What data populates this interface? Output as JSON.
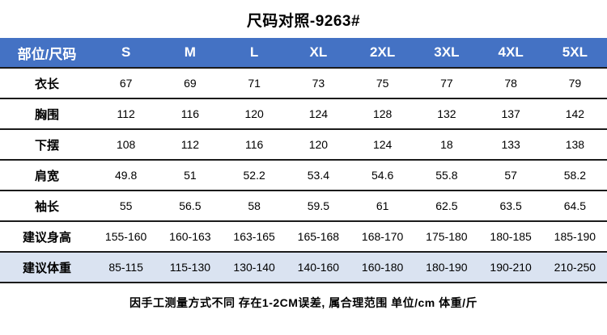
{
  "title": "尺码对照-9263#",
  "table": {
    "headers": [
      "部位/尺码",
      "S",
      "M",
      "L",
      "XL",
      "2XL",
      "3XL",
      "4XL",
      "5XL"
    ],
    "rows": [
      {
        "label": "衣长",
        "values": [
          "67",
          "69",
          "71",
          "73",
          "75",
          "77",
          "78",
          "79"
        ]
      },
      {
        "label": "胸围",
        "values": [
          "112",
          "116",
          "120",
          "124",
          "128",
          "132",
          "137",
          "142"
        ]
      },
      {
        "label": "下摆",
        "values": [
          "108",
          "112",
          "116",
          "120",
          "124",
          "18",
          "133",
          "138"
        ]
      },
      {
        "label": "肩宽",
        "values": [
          "49.8",
          "51",
          "52.2",
          "53.4",
          "54.6",
          "55.8",
          "57",
          "58.2"
        ]
      },
      {
        "label": "袖长",
        "values": [
          "55",
          "56.5",
          "58",
          "59.5",
          "61",
          "62.5",
          "63.5",
          "64.5"
        ]
      },
      {
        "label": "建议身高",
        "values": [
          "155-160",
          "160-163",
          "163-165",
          "165-168",
          "168-170",
          "175-180",
          "180-185",
          "185-190"
        ]
      },
      {
        "label": "建议体重",
        "values": [
          "85-115",
          "115-130",
          "130-140",
          "140-160",
          "160-180",
          "180-190",
          "190-210",
          "210-250"
        ]
      }
    ],
    "highlight_last_row": true
  },
  "footer": "因手工测量方式不同 存在1-2CM误差, 属合理范围 单位/cm  体重/斤",
  "colors": {
    "header_bg": "#4472c4",
    "header_text": "#ffffff",
    "row_border": "#1b1b1b",
    "last_row_bg": "#dae3f1"
  }
}
